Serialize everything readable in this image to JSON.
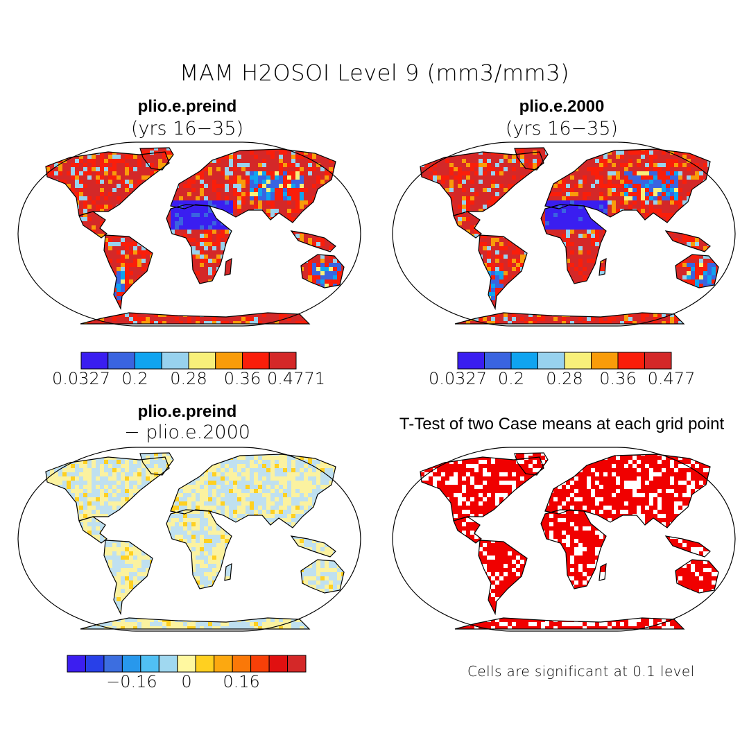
{
  "title": "MAM H2OSOI Level 9 (mm3/mm3)",
  "panels": [
    {
      "id": "tl",
      "title": "plio.e.preind",
      "subtitle": "(yrs 16−35)",
      "field": "absolute"
    },
    {
      "id": "tr",
      "title": "plio.e.2000",
      "subtitle": "(yrs 16−35)",
      "field": "absolute"
    },
    {
      "id": "bl",
      "title": "plio.e.preind",
      "subtitle": "− plio.e.2000",
      "field": "difference"
    },
    {
      "id": "br",
      "title": "T-Test of two Case means at each grid point",
      "subtitle": "",
      "field": "significance"
    }
  ],
  "colorbars": {
    "tl": {
      "colors": [
        "#3a1ef0",
        "#3a64e0",
        "#10a4f0",
        "#98d2ee",
        "#f8f07a",
        "#f99c0a",
        "#fa1e0a",
        "#d42828"
      ],
      "labels": [
        "0.0327",
        "0.2",
        "0.28",
        "0.36",
        "0.4771"
      ]
    },
    "tr": {
      "colors": [
        "#3a1ef0",
        "#3a64e0",
        "#10a4f0",
        "#98d2ee",
        "#f8f07a",
        "#f99c0a",
        "#fa1e0a",
        "#d42828"
      ],
      "labels": [
        "0.0327",
        "0.2",
        "0.28",
        "0.36",
        "0.477"
      ]
    },
    "bl": {
      "colors": [
        "#3c1ef0",
        "#2840e8",
        "#3c6ee0",
        "#2898ec",
        "#50c0f4",
        "#a0d8f0",
        "#fff8a0",
        "#ffd020",
        "#fca810",
        "#fa7808",
        "#f84008",
        "#e01010",
        "#d42828"
      ],
      "labels": [
        "−0.16",
        "0",
        "0.16"
      ]
    }
  },
  "significance_note": "Cells are significant at 0.1 level",
  "colors": {
    "ocean": "#ffffff",
    "coast": "#000000",
    "very_dry": "#3a1ef0",
    "dry": "#3a64e0",
    "wet": "#fa1e0a",
    "very_wet": "#d42828",
    "diff_neg": "#bfe0f0",
    "diff_pos": "#fbf2a0",
    "significant": "#f00000"
  }
}
